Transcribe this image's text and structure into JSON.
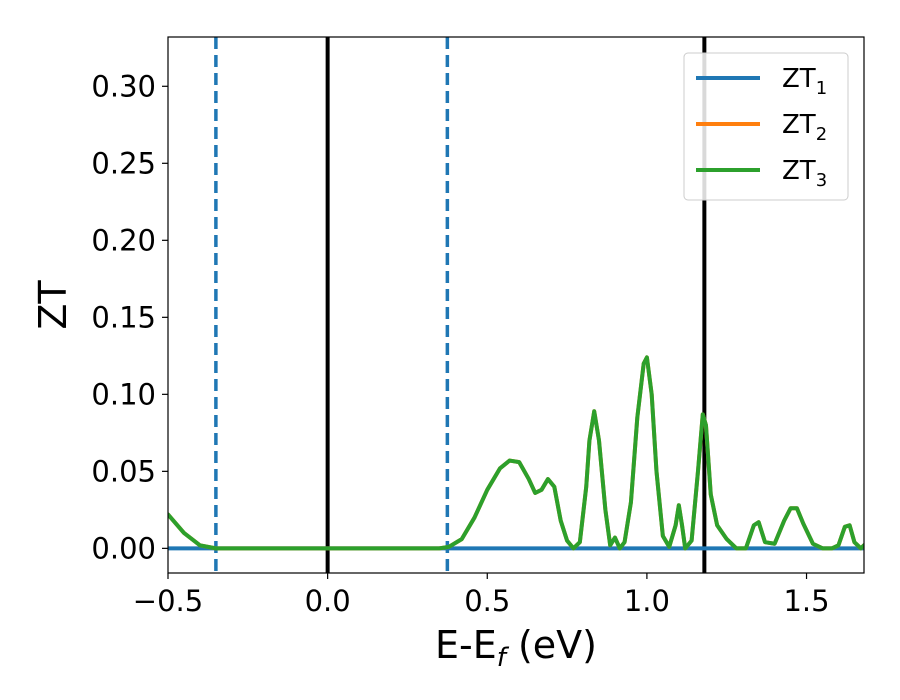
{
  "chart_data": {
    "type": "line",
    "xlabel": "E-E",
    "xlabel_sub": "f",
    "xlabel_unit": " (eV)",
    "ylabel": "ZT",
    "xlim": [
      -0.5,
      1.68
    ],
    "ylim": [
      -0.016,
      0.332
    ],
    "x_ticks": [
      -0.5,
      0.0,
      0.5,
      1.0,
      1.5
    ],
    "x_tick_labels": [
      "−0.5",
      "0.0",
      "0.5",
      "1.0",
      "1.5"
    ],
    "y_ticks": [
      0.0,
      0.05,
      0.1,
      0.15,
      0.2,
      0.25,
      0.3
    ],
    "y_tick_labels": [
      "0.00",
      "0.05",
      "0.10",
      "0.15",
      "0.20",
      "0.25",
      "0.30"
    ],
    "grid": false,
    "legend": {
      "placement": "top-right",
      "entries": [
        {
          "label": "ZT",
          "sub": "1",
          "color": "#1f77b4"
        },
        {
          "label": "ZT",
          "sub": "2",
          "color": "#ff7f0e"
        },
        {
          "label": "ZT",
          "sub": "3",
          "color": "#2ca02c"
        }
      ]
    },
    "vertical_lines": [
      {
        "x": -0.35,
        "style": "dashed",
        "color": "#1f77b4"
      },
      {
        "x": 0.0,
        "style": "solid",
        "color": "#000000"
      },
      {
        "x": 0.375,
        "style": "dashed",
        "color": "#1f77b4"
      },
      {
        "x": 1.18,
        "style": "solid",
        "color": "#000000"
      }
    ],
    "series": [
      {
        "name": "ZT₁",
        "color": "#1f77b4",
        "x": [
          -0.5,
          1.68
        ],
        "y": [
          0.0,
          0.0
        ]
      },
      {
        "name": "ZT₂",
        "color": "#ff7f0e",
        "x": [
          -0.5,
          -0.45,
          -0.4,
          -0.35,
          -0.2,
          0.0,
          0.2,
          0.35,
          0.38,
          0.42,
          0.46,
          0.5,
          0.54,
          0.57,
          0.6,
          0.63,
          0.65,
          0.67,
          0.69,
          0.71,
          0.73,
          0.75,
          0.77,
          0.79,
          0.81,
          0.82,
          0.835,
          0.85,
          0.87,
          0.885,
          0.9,
          0.915,
          0.93,
          0.95,
          0.97,
          0.99,
          1.0,
          1.015,
          1.03,
          1.05,
          1.07,
          1.09,
          1.1,
          1.11,
          1.12,
          1.14,
          1.16,
          1.175,
          1.185,
          1.2,
          1.22,
          1.25,
          1.28,
          1.31,
          1.335,
          1.35,
          1.37,
          1.4,
          1.43,
          1.45,
          1.47,
          1.49,
          1.52,
          1.55,
          1.58,
          1.6,
          1.62,
          1.635,
          1.65,
          1.67,
          1.68
        ],
        "y": [
          0.022,
          0.01,
          0.002,
          0.0,
          0.0,
          0.0,
          0.0,
          0.0,
          0.001,
          0.006,
          0.02,
          0.038,
          0.052,
          0.057,
          0.056,
          0.045,
          0.036,
          0.038,
          0.045,
          0.04,
          0.018,
          0.005,
          0.0,
          0.004,
          0.04,
          0.07,
          0.089,
          0.07,
          0.025,
          0.002,
          0.007,
          0.0,
          0.004,
          0.03,
          0.085,
          0.12,
          0.124,
          0.1,
          0.05,
          0.008,
          0.001,
          0.015,
          0.028,
          0.015,
          0.0,
          0.005,
          0.05,
          0.087,
          0.08,
          0.035,
          0.015,
          0.006,
          0.0,
          0.0,
          0.015,
          0.017,
          0.004,
          0.003,
          0.018,
          0.026,
          0.026,
          0.016,
          0.003,
          0.0,
          0.0,
          0.002,
          0.014,
          0.015,
          0.004,
          0.0,
          0.002
        ]
      },
      {
        "name": "ZT₃",
        "color": "#2ca02c",
        "x": [
          -0.5,
          -0.45,
          -0.4,
          -0.35,
          -0.2,
          0.0,
          0.2,
          0.35,
          0.38,
          0.42,
          0.46,
          0.5,
          0.54,
          0.57,
          0.6,
          0.63,
          0.65,
          0.67,
          0.69,
          0.71,
          0.73,
          0.75,
          0.77,
          0.79,
          0.81,
          0.82,
          0.835,
          0.85,
          0.87,
          0.885,
          0.9,
          0.915,
          0.93,
          0.95,
          0.97,
          0.99,
          1.0,
          1.015,
          1.03,
          1.05,
          1.07,
          1.09,
          1.1,
          1.11,
          1.12,
          1.14,
          1.16,
          1.175,
          1.185,
          1.2,
          1.22,
          1.25,
          1.28,
          1.31,
          1.335,
          1.35,
          1.37,
          1.4,
          1.43,
          1.45,
          1.47,
          1.49,
          1.52,
          1.55,
          1.58,
          1.6,
          1.62,
          1.635,
          1.65,
          1.67,
          1.68
        ],
        "y": [
          0.022,
          0.01,
          0.002,
          0.0,
          0.0,
          0.0,
          0.0,
          0.0,
          0.001,
          0.006,
          0.02,
          0.038,
          0.052,
          0.057,
          0.056,
          0.045,
          0.036,
          0.038,
          0.045,
          0.04,
          0.018,
          0.005,
          0.0,
          0.004,
          0.04,
          0.07,
          0.089,
          0.07,
          0.025,
          0.002,
          0.007,
          0.0,
          0.004,
          0.03,
          0.085,
          0.12,
          0.124,
          0.1,
          0.05,
          0.008,
          0.001,
          0.015,
          0.028,
          0.015,
          0.0,
          0.005,
          0.05,
          0.087,
          0.08,
          0.035,
          0.015,
          0.006,
          0.0,
          0.0,
          0.015,
          0.017,
          0.004,
          0.003,
          0.018,
          0.026,
          0.026,
          0.016,
          0.003,
          0.0,
          0.0,
          0.002,
          0.014,
          0.015,
          0.004,
          0.0,
          0.002
        ]
      }
    ]
  }
}
